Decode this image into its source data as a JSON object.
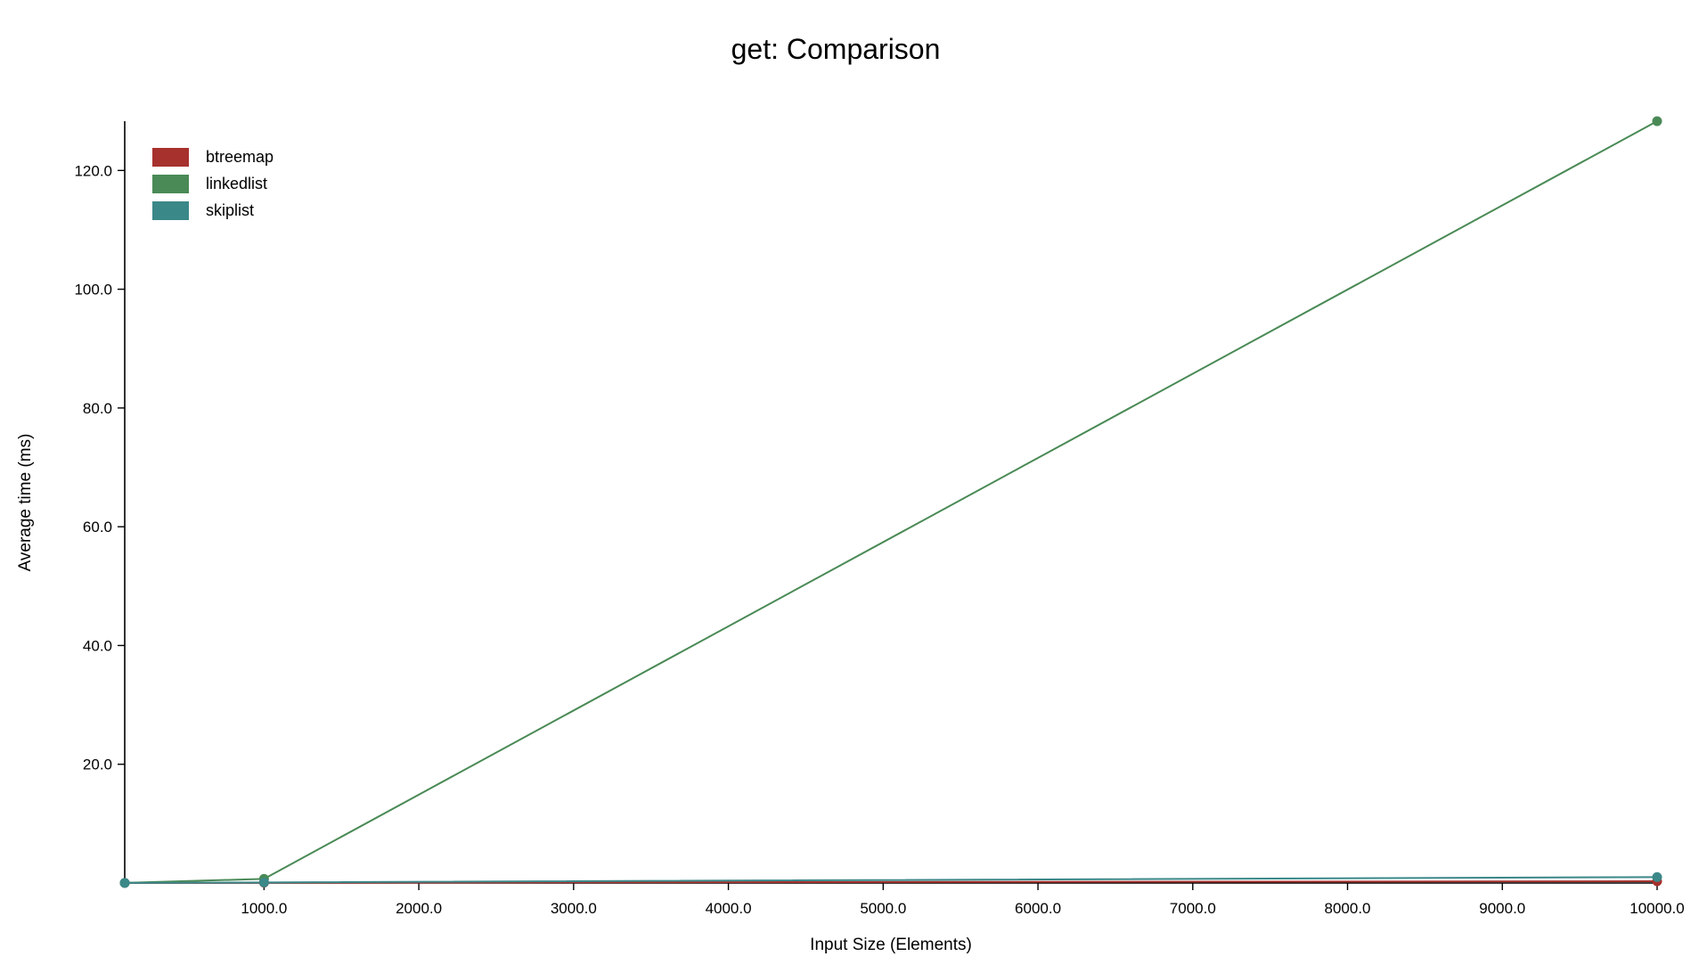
{
  "chart_data": {
    "type": "line",
    "title": "get: Comparison",
    "xlabel": "Input Size (Elements)",
    "ylabel": "Average time (ms)",
    "x": [
      100,
      1000,
      10000
    ],
    "xlim": [
      100,
      10000
    ],
    "ylim": [
      0,
      128.3
    ],
    "x_ticks": [
      1000,
      2000,
      3000,
      4000,
      5000,
      6000,
      7000,
      8000,
      9000,
      10000
    ],
    "x_tick_labels": [
      "1000.0",
      "2000.0",
      "3000.0",
      "4000.0",
      "5000.0",
      "6000.0",
      "7000.0",
      "8000.0",
      "9000.0",
      "10000.0"
    ],
    "y_ticks": [
      20,
      40,
      60,
      80,
      100,
      120
    ],
    "y_tick_labels": [
      "20.0",
      "40.0",
      "60.0",
      "80.0",
      "100.0",
      "120.0"
    ],
    "grid": false,
    "legend_position": "top-left",
    "series": [
      {
        "name": "btreemap",
        "color": "#a6312d",
        "values": [
          0.02,
          0.05,
          0.3
        ]
      },
      {
        "name": "linkedlist",
        "color": "#4a8a56",
        "values": [
          0.01,
          0.7,
          128.3
        ]
      },
      {
        "name": "skiplist",
        "color": "#3b8889",
        "values": [
          0.02,
          0.1,
          1.0
        ]
      }
    ]
  }
}
